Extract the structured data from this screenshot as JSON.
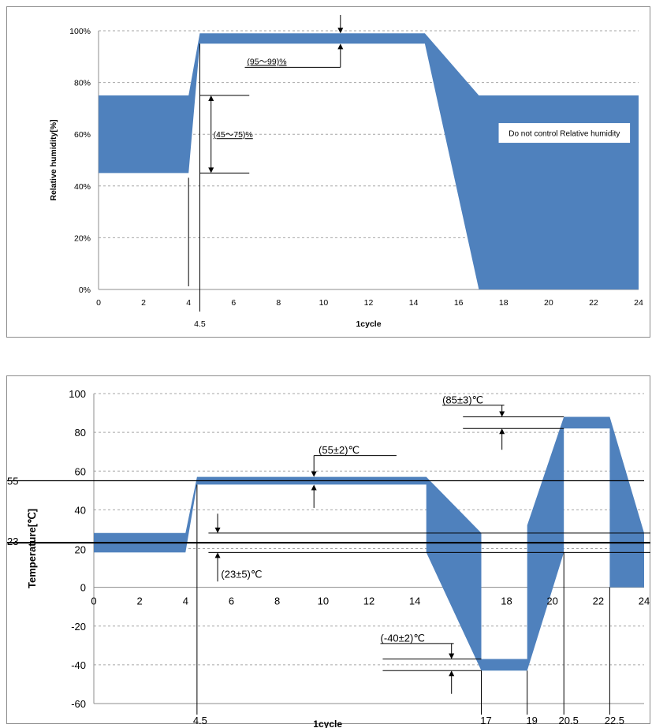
{
  "chart_data": [
    {
      "type": "area",
      "ylabel": "Relative humidity[%]",
      "xlabel": "1cycle",
      "xlim": [
        0,
        24
      ],
      "ylim": [
        0,
        100
      ],
      "grid": true,
      "x_ticks": [
        0,
        2,
        4,
        6,
        8,
        10,
        12,
        14,
        16,
        18,
        20,
        22,
        24
      ],
      "y_ticks": [
        0,
        20,
        40,
        60,
        80,
        100
      ],
      "y_tick_labels": [
        "0%",
        "20%",
        "40%",
        "60%",
        "80%",
        "100%"
      ],
      "extra_x_label": "4.5",
      "band": {
        "upper": [
          [
            0,
            75
          ],
          [
            4,
            75
          ],
          [
            4.5,
            99
          ],
          [
            14.5,
            99
          ],
          [
            16.9,
            75
          ],
          [
            24,
            75
          ]
        ],
        "lower": [
          [
            0,
            45
          ],
          [
            4,
            45
          ],
          [
            4.5,
            95
          ],
          [
            14.5,
            95
          ],
          [
            16.9,
            0
          ],
          [
            24,
            0
          ]
        ]
      },
      "annotations": [
        "(95～99)%",
        "(45～75)%",
        "Do not control  Relative  humidity"
      ]
    },
    {
      "type": "area",
      "ylabel": "Temperature[℃]",
      "xlabel": "1cycle",
      "xlim": [
        0,
        24
      ],
      "ylim": [
        -60,
        100
      ],
      "grid": true,
      "x_ticks": [
        0,
        2,
        4,
        6,
        8,
        10,
        12,
        14,
        18,
        20,
        22,
        24
      ],
      "y_ticks": [
        -60,
        -40,
        -20,
        0,
        20,
        40,
        60,
        80,
        100
      ],
      "extra_x_labels": [
        "4.5",
        "17",
        "19",
        "20.5",
        "22.5"
      ],
      "extra_y_labels": [
        "55",
        "23"
      ],
      "band": {
        "upper": [
          [
            0,
            28
          ],
          [
            4,
            28
          ],
          [
            4.5,
            57
          ],
          [
            14.5,
            57
          ],
          [
            16.9,
            28
          ],
          [
            16.9,
            -37
          ],
          [
            18.9,
            -37
          ],
          [
            18.9,
            32
          ],
          [
            20.5,
            88
          ],
          [
            22.5,
            88
          ],
          [
            24,
            28
          ]
        ],
        "lower": [
          [
            0,
            18
          ],
          [
            4,
            18
          ],
          [
            4.5,
            53
          ],
          [
            14.5,
            53
          ],
          [
            14.5,
            18
          ],
          [
            16.9,
            -43
          ],
          [
            18.9,
            -43
          ],
          [
            20.5,
            18
          ],
          [
            20.5,
            82
          ],
          [
            22.5,
            82
          ],
          [
            22.5,
            0
          ],
          [
            24,
            0
          ]
        ]
      },
      "annotations": [
        "(55±2)℃",
        "(23±5)℃",
        "(85±3)℃",
        "(-40±2)℃"
      ]
    }
  ],
  "colors": {
    "band": "#4f81bd",
    "grid": "#a6a6a6",
    "axis": "#000000"
  }
}
